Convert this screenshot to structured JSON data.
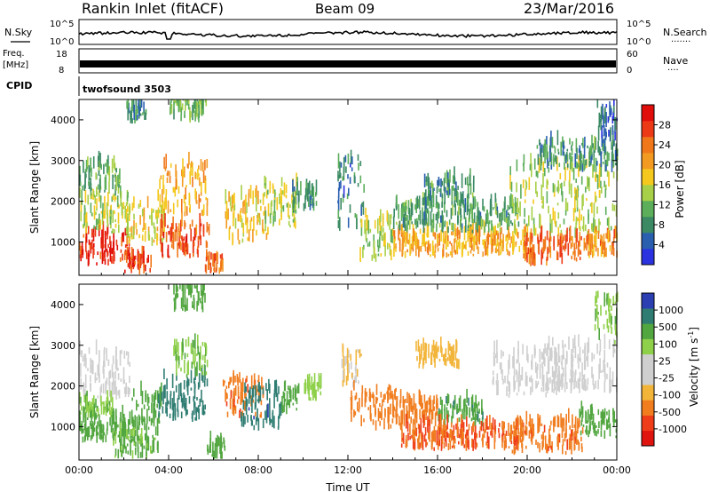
{
  "header": {
    "station": "Rankin Inlet (fitACF)",
    "beam": "Beam 09",
    "date": "23/Mar/2016"
  },
  "nsky_panel": {
    "left_label": "N.Sky",
    "right_label": "N.Search",
    "right_dots": "·······",
    "y_ticks_left": [
      "10^5",
      "10^0"
    ],
    "y_ticks_right": [
      "10^5",
      "10^0"
    ]
  },
  "freq_panel": {
    "left_label_1": "Freq.",
    "left_label_2": "[MHz]",
    "right_label": "Nave",
    "right_dots": "····",
    "y_ticks_left": [
      "18",
      "8"
    ],
    "y_ticks_right": [
      "60",
      "0"
    ]
  },
  "cpid_panel": {
    "label": "CPID",
    "value": "twofsound 3503"
  },
  "colors": {
    "power": [
      "#2b33e0",
      "#2a5fb0",
      "#3b8a64",
      "#5cae5b",
      "#a7cf47",
      "#f4c81d",
      "#f39a22",
      "#f0781a",
      "#ec3a17",
      "#e00d0a"
    ],
    "velocity": [
      "#e0140f",
      "#f03d19",
      "#f17d1f",
      "#f2b53a",
      "#cfcfcf",
      "#cfcfcf",
      "#8fd04a",
      "#52a640",
      "#2f7d72",
      "#2b3fb3"
    ]
  },
  "chart_data": [
    {
      "type": "heatmap",
      "title": "",
      "xlabel": "",
      "ylabel": "Slant Range [km]",
      "y_ticks": [
        "1000",
        "2000",
        "3000",
        "4000"
      ],
      "x_tick_hours": [
        0,
        4,
        8,
        12,
        16,
        20,
        24
      ],
      "xlim_hours": [
        0,
        24
      ],
      "ylim_km": [
        180,
        4500
      ],
      "colorbar": {
        "label": "Power [dB]",
        "range": [
          0,
          32
        ],
        "ticks": [
          "4",
          "8",
          "12",
          "16",
          "20",
          "24",
          "28"
        ]
      },
      "bands": [
        {
          "t": [
            0.0,
            2.3
          ],
          "r": [
            400,
            1200
          ],
          "v": 29
        },
        {
          "t": [
            0.0,
            2.2
          ],
          "r": [
            1200,
            2100
          ],
          "v": 15
        },
        {
          "t": [
            0.0,
            1.8
          ],
          "r": [
            2100,
            2900
          ],
          "v": 11
        },
        {
          "t": [
            2.1,
            3.8
          ],
          "r": [
            900,
            1900
          ],
          "v": 17
        },
        {
          "t": [
            3.5,
            5.7
          ],
          "r": [
            1600,
            2900
          ],
          "v": 20
        },
        {
          "t": [
            3.6,
            5.8
          ],
          "r": [
            600,
            1400
          ],
          "v": 26
        },
        {
          "t": [
            2.0,
            3.2
          ],
          "r": [
            200,
            600
          ],
          "v": 27
        },
        {
          "t": [
            5.6,
            6.4
          ],
          "r": [
            200,
            600
          ],
          "v": 24
        },
        {
          "t": [
            6.5,
            8.5
          ],
          "r": [
            900,
            2100
          ],
          "v": 18
        },
        {
          "t": [
            8.2,
            9.7
          ],
          "r": [
            1300,
            2400
          ],
          "v": 15
        },
        {
          "t": [
            9.5,
            10.6
          ],
          "r": [
            1700,
            2300
          ],
          "v": 9
        },
        {
          "t": [
            11.5,
            12.7
          ],
          "r": [
            1200,
            3000
          ],
          "v": 7
        },
        {
          "t": [
            12.5,
            14.0
          ],
          "r": [
            500,
            1600
          ],
          "v": 15
        },
        {
          "t": [
            14.0,
            20.2
          ],
          "r": [
            600,
            1200
          ],
          "v": 20
        },
        {
          "t": [
            14.0,
            19.6
          ],
          "r": [
            1200,
            1900
          ],
          "v": 10
        },
        {
          "t": [
            15.3,
            17.6
          ],
          "r": [
            1800,
            2500
          ],
          "v": 9
        },
        {
          "t": [
            19.2,
            24.0
          ],
          "r": [
            1100,
            2900
          ],
          "v": 14
        },
        {
          "t": [
            19.8,
            22.4
          ],
          "r": [
            400,
            1100
          ],
          "v": 25
        },
        {
          "t": [
            22.5,
            24.0
          ],
          "r": [
            600,
            1100
          ],
          "v": 22
        },
        {
          "t": [
            20.4,
            24.0
          ],
          "r": [
            2700,
            3400
          ],
          "v": 9
        },
        {
          "t": [
            23.0,
            24.0
          ],
          "r": [
            3400,
            4300
          ],
          "v": 5
        },
        {
          "t": [
            4.0,
            5.7
          ],
          "r": [
            3900,
            4500
          ],
          "v": 12
        },
        {
          "t": [
            2.1,
            3.0
          ],
          "r": [
            3900,
            4300
          ],
          "v": 8
        }
      ]
    },
    {
      "type": "heatmap",
      "title": "",
      "xlabel": "Time UT",
      "ylabel": "Slant Range [km]",
      "y_ticks": [
        "1000",
        "2000",
        "3000",
        "4000"
      ],
      "x_tick_labels": [
        "00:00",
        "04:00",
        "08:00",
        "12:00",
        "16:00",
        "20:00",
        "00:00"
      ],
      "x_tick_hours": [
        0,
        4,
        8,
        12,
        16,
        20,
        24
      ],
      "xlim_hours": [
        0,
        24
      ],
      "ylim_km": [
        180,
        4500
      ],
      "colorbar": {
        "label": "Velocity [m s^-1]",
        "classes": [
          -1500,
          -1000,
          -500,
          -100,
          -25,
          0,
          25,
          100,
          500,
          1000,
          1500
        ],
        "ticks": [
          "-1000",
          "-500",
          "-100",
          "-25",
          "25",
          "100",
          "500",
          "1000"
        ]
      },
      "bands": [
        {
          "t": [
            0.0,
            2.3
          ],
          "r": [
            1600,
            2800
          ],
          "v": 0
        },
        {
          "t": [
            0.0,
            1.5
          ],
          "r": [
            1200,
            1600
          ],
          "v": 80
        },
        {
          "t": [
            0.0,
            2.5
          ],
          "r": [
            600,
            1200
          ],
          "v": 300
        },
        {
          "t": [
            1.5,
            3.5
          ],
          "r": [
            200,
            800
          ],
          "v": 120
        },
        {
          "t": [
            2.3,
            3.7
          ],
          "r": [
            900,
            1800
          ],
          "v": 180
        },
        {
          "t": [
            3.5,
            5.7
          ],
          "r": [
            1100,
            2200
          ],
          "v": 700
        },
        {
          "t": [
            4.2,
            5.7
          ],
          "r": [
            2200,
            3000
          ],
          "v": 80
        },
        {
          "t": [
            5.7,
            6.5
          ],
          "r": [
            200,
            600
          ],
          "v": 200
        },
        {
          "t": [
            6.4,
            8.2
          ],
          "r": [
            1200,
            2100
          ],
          "v": -400
        },
        {
          "t": [
            7.2,
            9.0
          ],
          "r": [
            900,
            1900
          ],
          "v": 800
        },
        {
          "t": [
            9.0,
            9.8
          ],
          "r": [
            1300,
            2000
          ],
          "v": 300
        },
        {
          "t": [
            10.0,
            10.8
          ],
          "r": [
            1600,
            2000
          ],
          "v": 60
        },
        {
          "t": [
            11.7,
            12.6
          ],
          "r": [
            1900,
            2900
          ],
          "v": -30
        },
        {
          "t": [
            12.1,
            14.2
          ],
          "r": [
            900,
            1900
          ],
          "v": -300
        },
        {
          "t": [
            14.0,
            16.0
          ],
          "r": [
            1000,
            1600
          ],
          "v": -200
        },
        {
          "t": [
            16.0,
            18.0
          ],
          "r": [
            1000,
            1600
          ],
          "v": 400
        },
        {
          "t": [
            14.3,
            19.8
          ],
          "r": [
            400,
            1000
          ],
          "v": -500
        },
        {
          "t": [
            18.4,
            21.7
          ],
          "r": [
            1700,
            2800
          ],
          "v": 0
        },
        {
          "t": [
            19.3,
            22.5
          ],
          "r": [
            300,
            1100
          ],
          "v": -400
        },
        {
          "t": [
            20.7,
            24.0
          ],
          "r": [
            1800,
            3000
          ],
          "v": 0
        },
        {
          "t": [
            22.3,
            24.0
          ],
          "r": [
            700,
            1300
          ],
          "v": 250
        },
        {
          "t": [
            15.0,
            17.0
          ],
          "r": [
            2400,
            2900
          ],
          "v": -60
        },
        {
          "t": [
            23.0,
            24.0
          ],
          "r": [
            3000,
            4200
          ],
          "v": 80
        },
        {
          "t": [
            4.2,
            5.6
          ],
          "r": [
            3800,
            4400
          ],
          "v": 150
        }
      ]
    }
  ]
}
